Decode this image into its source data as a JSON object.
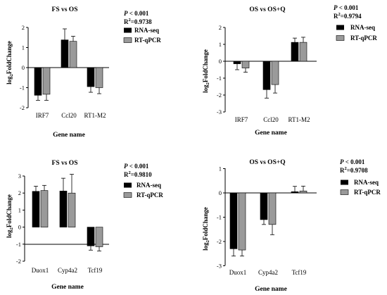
{
  "chart_data": [
    {
      "type": "bar",
      "title": "FS vs OS",
      "xlabel": "Gene name",
      "ylabel": "log2FoldChange",
      "ylim": [
        -2,
        2
      ],
      "yticks": [
        "-2",
        "-1",
        "0",
        "1",
        "2"
      ],
      "categories": [
        "IRF7",
        "Ccl20",
        "RT1-M2"
      ],
      "series": [
        {
          "name": "RNA-seq",
          "color": "#000000",
          "values": [
            -1.38,
            1.38,
            -0.95
          ],
          "errors": [
            0.25,
            0.55,
            0.28
          ]
        },
        {
          "name": "RT-qPCR",
          "color": "#9a9a9a",
          "values": [
            -1.33,
            1.31,
            -1.0
          ],
          "errors": [
            0.3,
            0.25,
            0.3
          ]
        }
      ],
      "p_value": "P < 0.001",
      "r_squared": "0.9738"
    },
    {
      "type": "bar",
      "title": "OS vs OS+Q",
      "xlabel": "Gene name",
      "ylabel": "log2FoldChange",
      "ylim": [
        -3,
        2
      ],
      "yticks": [
        "-3",
        "-2",
        "-1",
        "0",
        "1",
        "2"
      ],
      "categories": [
        "IRF7",
        "Ccl20",
        "RT1-M2"
      ],
      "series": [
        {
          "name": "RNA-seq",
          "color": "#000000",
          "values": [
            -0.15,
            -1.68,
            1.12
          ],
          "errors": [
            0.35,
            0.5,
            0.25
          ]
        },
        {
          "name": "RT-qPCR",
          "color": "#9a9a9a",
          "values": [
            -0.4,
            -1.38,
            1.12
          ],
          "errors": [
            0.25,
            0.5,
            0.3
          ]
        }
      ],
      "p_value": "P < 0.001",
      "r_squared": "0.9794"
    },
    {
      "type": "bar",
      "title": "FS vs OS",
      "xlabel": "Gene name",
      "ylabel": "log2FoldChange",
      "ylim": [
        -2,
        3
      ],
      "yticks": [
        "-2",
        "-1",
        "0",
        "1",
        "2",
        "3"
      ],
      "categories": [
        "Duox1",
        "Cyp4a2",
        "Tcf19"
      ],
      "series": [
        {
          "name": "RNA-seq",
          "color": "#000000",
          "values": [
            2.1,
            2.12,
            -1.1
          ],
          "errors": [
            0.3,
            0.75,
            0.25
          ]
        },
        {
          "name": "RT-qPCR",
          "color": "#9a9a9a",
          "values": [
            2.15,
            2.0,
            -1.15
          ],
          "errors": [
            0.3,
            1.1,
            0.25
          ]
        }
      ],
      "p_value": "P < 0.001",
      "r_squared": "0.9810"
    },
    {
      "type": "bar",
      "title": "OS vs OS+Q",
      "xlabel": "Gene name",
      "ylabel": "log2FoldChange",
      "ylim": [
        -3,
        1
      ],
      "yticks": [
        "-3",
        "-2",
        "-1",
        "0",
        "1"
      ],
      "categories": [
        "Duox1",
        "Cyp4a2",
        "Tcf19"
      ],
      "series": [
        {
          "name": "RNA-seq",
          "color": "#000000",
          "values": [
            -2.3,
            -1.1,
            0.05
          ],
          "errors": [
            0.3,
            0.2,
            0.22
          ]
        },
        {
          "name": "RT-qPCR",
          "color": "#9a9a9a",
          "values": [
            -2.35,
            -1.3,
            0.08
          ],
          "errors": [
            0.25,
            0.42,
            0.2
          ]
        }
      ],
      "p_value": "P < 0.001",
      "r_squared": "0.9708"
    }
  ]
}
